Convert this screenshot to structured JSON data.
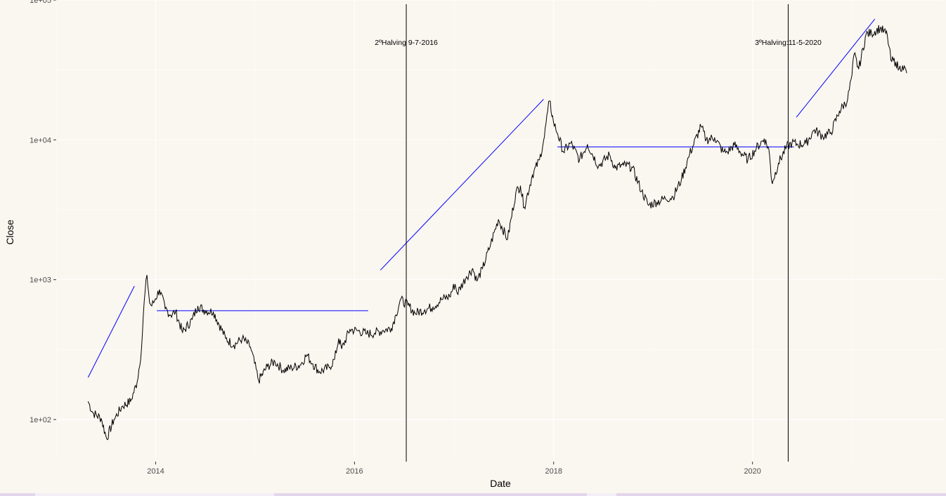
{
  "colors": {
    "panel_bg": "#faf6f0",
    "grid_major": "#ffffff",
    "price_line": "#000000",
    "trend_line": "#0000ff",
    "vline": "#000000"
  },
  "chart_data": {
    "type": "line",
    "title": "",
    "xlabel": "Date",
    "ylabel": "Close",
    "y_scale": "log10",
    "ylim": [
      50,
      100000
    ],
    "xlim": [
      "2013-01-01",
      "2021-12-01"
    ],
    "x_ticks": [
      {
        "date": "2014-01-01",
        "label": "2014"
      },
      {
        "date": "2016-01-01",
        "label": "2016"
      },
      {
        "date": "2018-01-01",
        "label": "2018"
      },
      {
        "date": "2020-01-01",
        "label": "2020"
      }
    ],
    "y_ticks": [
      {
        "value": 100,
        "label": "1e+02"
      },
      {
        "value": 1000,
        "label": "1e+03"
      },
      {
        "value": 10000,
        "label": "1e+04"
      },
      {
        "value": 100000,
        "label": "1e+05"
      }
    ],
    "grid": true,
    "legend": "none",
    "series": [
      {
        "x": [
          "2013-04-28",
          "2013-05-15",
          "2013-06-15",
          "2013-07-05",
          "2013-08-01",
          "2013-09-01",
          "2013-10-01",
          "2013-10-25",
          "2013-11-10",
          "2013-11-20",
          "2013-11-30",
          "2013-12-10",
          "2013-12-18",
          "2013-12-31",
          "2014-01-15",
          "2014-02-05",
          "2014-02-25",
          "2014-03-15",
          "2014-04-10",
          "2014-05-15",
          "2014-06-05",
          "2014-07-01",
          "2014-08-01",
          "2014-09-15",
          "2014-10-15",
          "2014-11-15",
          "2014-12-15",
          "2015-01-14",
          "2015-02-15",
          "2015-03-15",
          "2015-04-15",
          "2015-05-15",
          "2015-06-15",
          "2015-07-10",
          "2015-08-01",
          "2015-08-25",
          "2015-09-30",
          "2015-10-20",
          "2015-11-04",
          "2015-11-15",
          "2015-12-15",
          "2016-01-15",
          "2016-02-15",
          "2016-03-15",
          "2016-04-15",
          "2016-05-15",
          "2016-06-01",
          "2016-06-17",
          "2016-07-15",
          "2016-08-10",
          "2016-09-15",
          "2016-10-15",
          "2016-11-15",
          "2016-12-15",
          "2017-01-04",
          "2017-01-12",
          "2017-02-15",
          "2017-03-10",
          "2017-03-25",
          "2017-04-15",
          "2017-05-15",
          "2017-06-12",
          "2017-07-16",
          "2017-08-15",
          "2017-09-01",
          "2017-09-15",
          "2017-10-15",
          "2017-11-10",
          "2017-11-28",
          "2017-12-10",
          "2017-12-17",
          "2017-12-31",
          "2018-01-16",
          "2018-02-06",
          "2018-03-05",
          "2018-04-06",
          "2018-05-05",
          "2018-06-15",
          "2018-07-25",
          "2018-08-15",
          "2018-09-15",
          "2018-10-15",
          "2018-11-20",
          "2018-12-15",
          "2019-01-15",
          "2019-02-15",
          "2019-03-15",
          "2019-04-15",
          "2019-05-15",
          "2019-06-26",
          "2019-07-15",
          "2019-08-15",
          "2019-09-15",
          "2019-10-01",
          "2019-10-26",
          "2019-11-15",
          "2019-12-15",
          "2020-01-15",
          "2020-02-13",
          "2020-03-01",
          "2020-03-12",
          "2020-03-16",
          "2020-04-05",
          "2020-05-05",
          "2020-05-25",
          "2020-06-15",
          "2020-07-15",
          "2020-08-15",
          "2020-09-15",
          "2020-10-15",
          "2020-11-15",
          "2020-12-15",
          "2020-12-31",
          "2021-01-08",
          "2021-01-25",
          "2021-02-21",
          "2021-03-13",
          "2021-04-14",
          "2021-05-10",
          "2021-05-23",
          "2021-06-10",
          "2021-06-22",
          "2021-07-05",
          "2021-07-20"
        ],
        "y": [
          135,
          112,
          102,
          73,
          100,
          125,
          135,
          185,
          320,
          700,
          1080,
          680,
          650,
          730,
          850,
          620,
          560,
          590,
          420,
          520,
          650,
          600,
          590,
          380,
          340,
          380,
          330,
          190,
          240,
          260,
          225,
          235,
          245,
          290,
          250,
          220,
          235,
          270,
          380,
          320,
          440,
          430,
          410,
          415,
          435,
          450,
          560,
          720,
          660,
          575,
          610,
          640,
          720,
          760,
          930,
          800,
          1050,
          1200,
          980,
          1200,
          1800,
          2700,
          1950,
          4200,
          4700,
          3300,
          5600,
          7200,
          10500,
          16000,
          19000,
          13500,
          11000,
          8200,
          9500,
          7200,
          9300,
          6500,
          7800,
          6300,
          6600,
          6400,
          4300,
          3400,
          3600,
          3800,
          3900,
          5200,
          7900,
          12500,
          10000,
          10400,
          8200,
          8200,
          9200,
          8300,
          7200,
          8700,
          10200,
          8600,
          5000,
          5100,
          6800,
          8900,
          9500,
          9300,
          9400,
          11800,
          10600,
          11300,
          16000,
          19400,
          29000,
          41000,
          32000,
          57000,
          58000,
          63000,
          56000,
          37000,
          36000,
          32000,
          34000,
          30000
        ]
      }
    ],
    "trend_lines": [
      {
        "x": [
          "2013-04-28",
          "2013-10-15"
        ],
        "y": [
          200,
          900
        ]
      },
      {
        "x": [
          "2014-01-05",
          "2016-02-20"
        ],
        "y": [
          600,
          600
        ]
      },
      {
        "x": [
          "2016-04-05",
          "2017-11-25"
        ],
        "y": [
          1170,
          19500
        ]
      },
      {
        "x": [
          "2018-01-15",
          "2020-06-01"
        ],
        "y": [
          8900,
          8900
        ]
      },
      {
        "x": [
          "2020-06-10",
          "2021-03-25"
        ],
        "y": [
          14500,
          73000
        ]
      }
    ],
    "vlines": [
      {
        "x": "2016-07-09",
        "label": "2ºHalving 9-7-2016",
        "label_y": 50000
      },
      {
        "x": "2020-05-11",
        "label": "3ºHalving:11-5-2020",
        "label_y": 50000
      }
    ]
  }
}
